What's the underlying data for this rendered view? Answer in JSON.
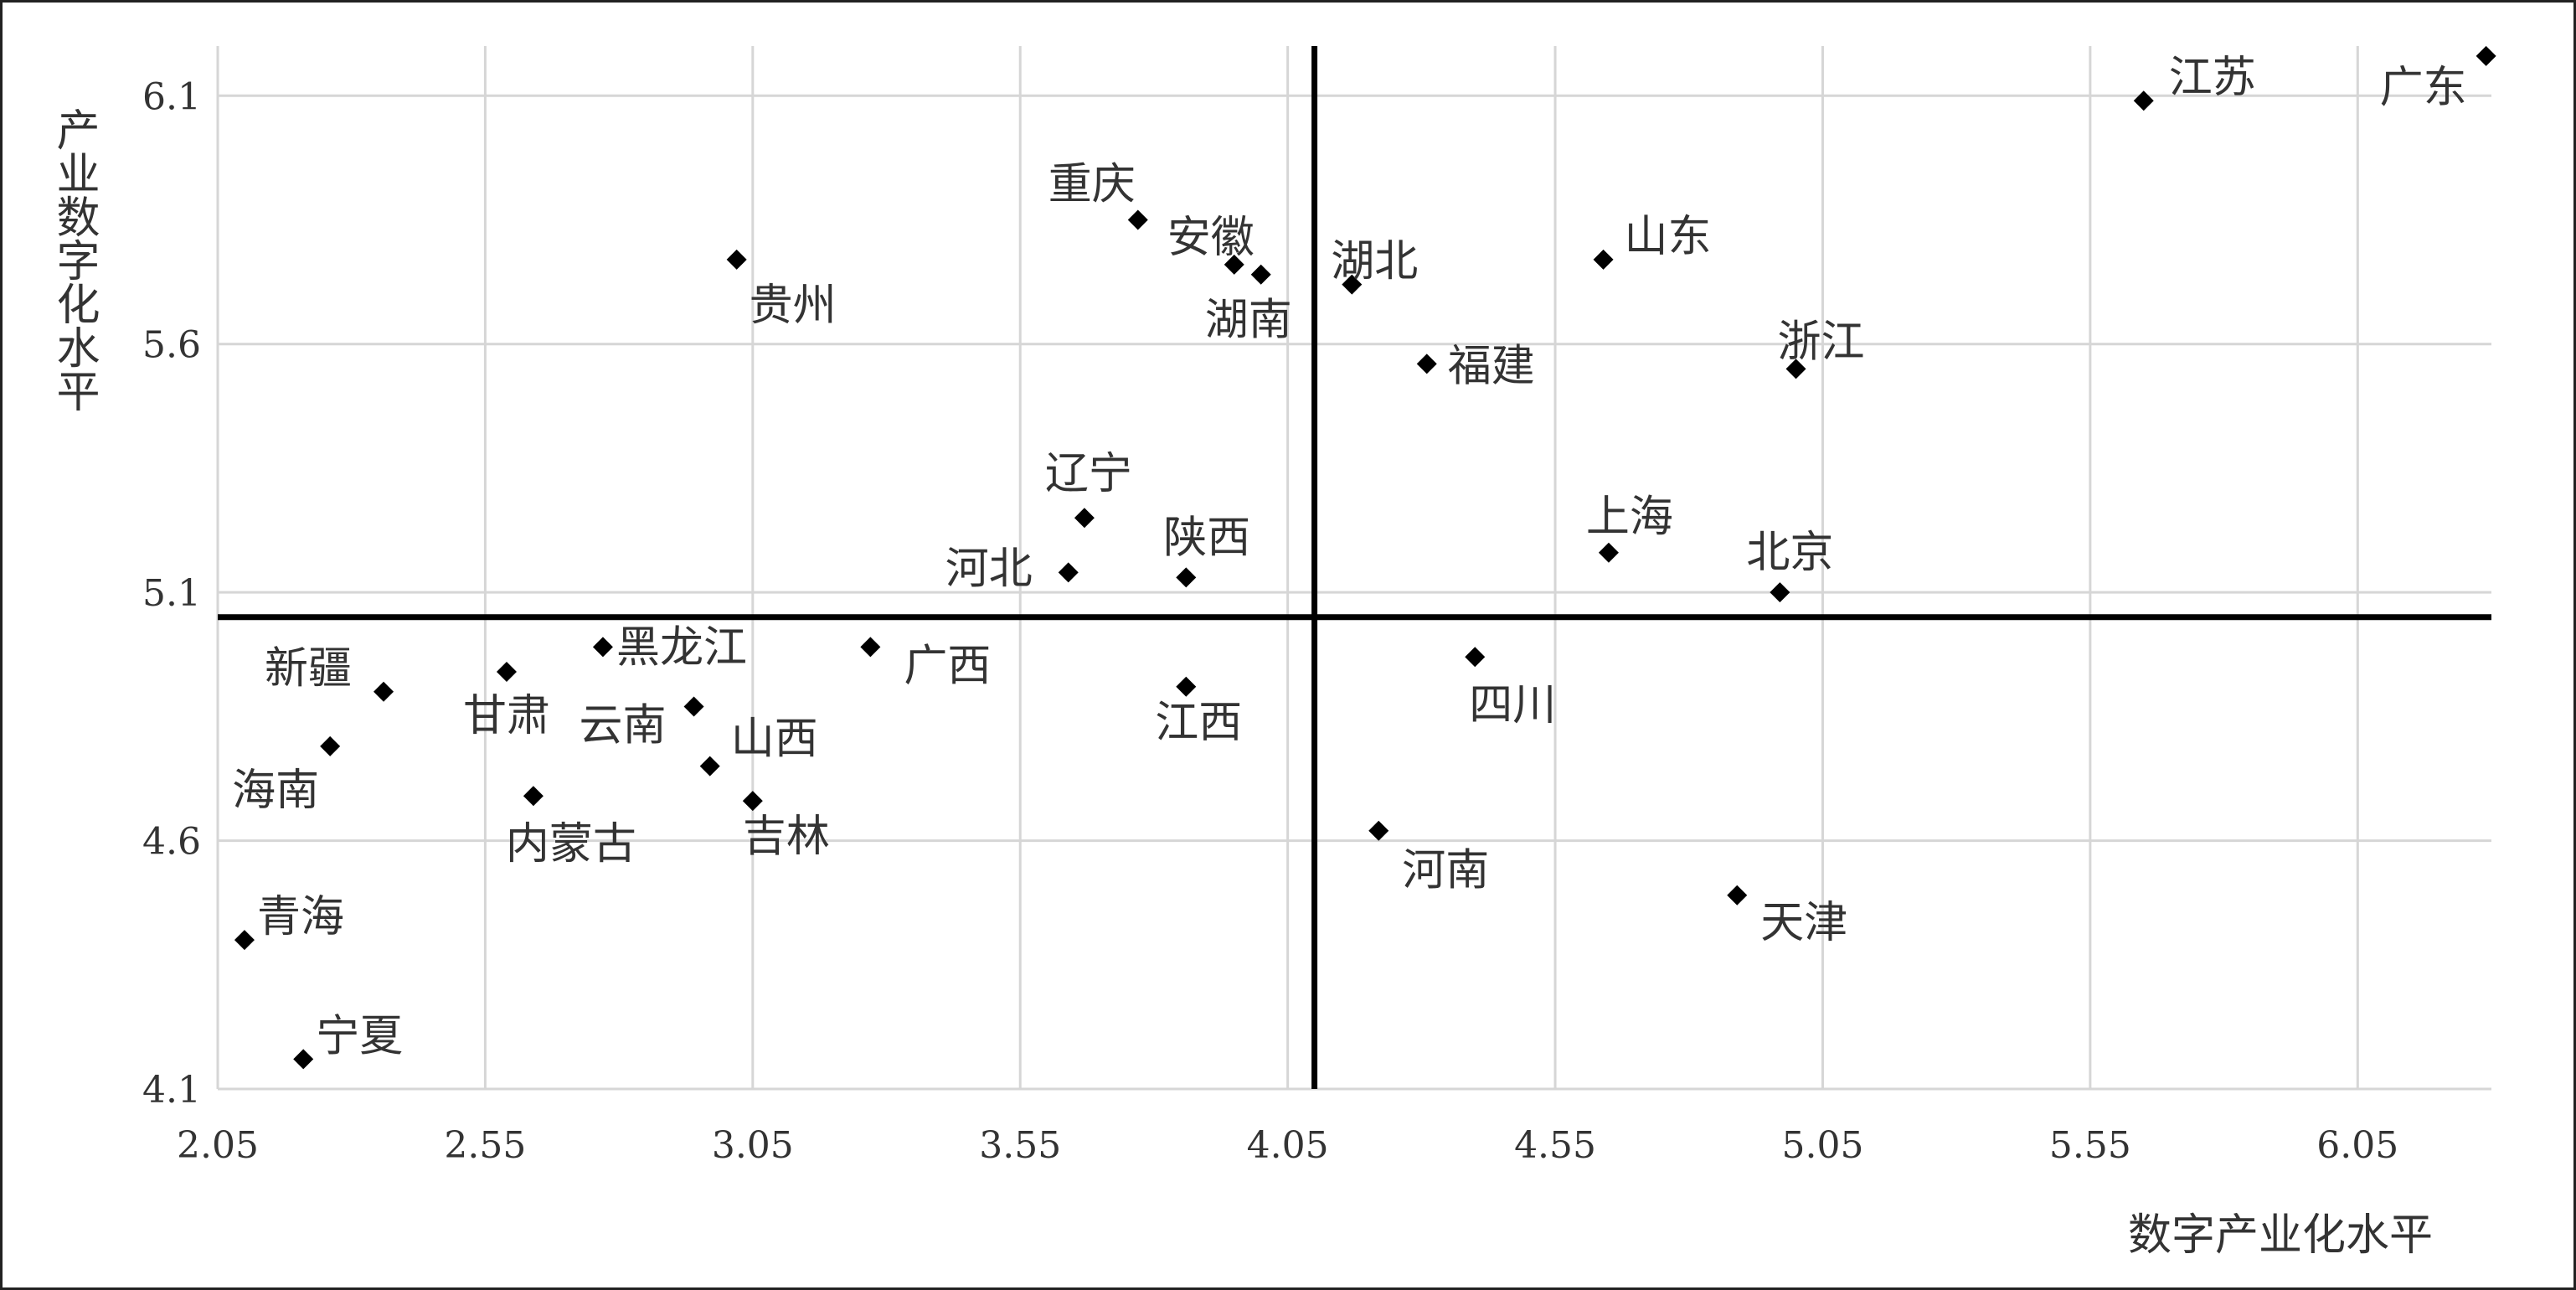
{
  "chart_data": {
    "type": "scatter",
    "title": "",
    "xlabel": "数字产业化水平",
    "ylabel": "产业数字化水平",
    "xlim": [
      2.05,
      6.3
    ],
    "ylim": [
      4.1,
      6.2
    ],
    "x_ticks": [
      "2.05",
      "2.55",
      "3.05",
      "3.55",
      "4.05",
      "4.55",
      "5.05",
      "5.55",
      "6.05"
    ],
    "y_ticks": [
      "4.1",
      "4.6",
      "5.1",
      "5.6",
      "6.1"
    ],
    "grid": true,
    "marker": "diamond",
    "marker_color": "#000000",
    "reference_lines": {
      "x": 4.1,
      "y": 5.05
    },
    "series": [
      {
        "points": [
          {
            "label": "广东",
            "x": 6.29,
            "y": 6.18
          },
          {
            "label": "江苏",
            "x": 5.65,
            "y": 6.09
          },
          {
            "label": "重庆",
            "x": 3.77,
            "y": 5.85
          },
          {
            "label": "安徽",
            "x": 3.95,
            "y": 5.76
          },
          {
            "label": "湖南",
            "x": 4.0,
            "y": 5.74
          },
          {
            "label": "湖北",
            "x": 4.17,
            "y": 5.72
          },
          {
            "label": "贵州",
            "x": 3.02,
            "y": 5.77
          },
          {
            "label": "山东",
            "x": 4.64,
            "y": 5.77
          },
          {
            "label": "福建",
            "x": 4.31,
            "y": 5.56
          },
          {
            "label": "浙江",
            "x": 5.0,
            "y": 5.55
          },
          {
            "label": "辽宁",
            "x": 3.67,
            "y": 5.25
          },
          {
            "label": "陕西",
            "x": 3.86,
            "y": 5.13
          },
          {
            "label": "河北",
            "x": 3.64,
            "y": 5.14
          },
          {
            "label": "上海",
            "x": 4.65,
            "y": 5.18
          },
          {
            "label": "北京",
            "x": 4.97,
            "y": 5.1
          },
          {
            "label": "广西",
            "x": 3.27,
            "y": 4.99
          },
          {
            "label": "黑龙江",
            "x": 2.77,
            "y": 4.99
          },
          {
            "label": "甘肃",
            "x": 2.59,
            "y": 4.94
          },
          {
            "label": "新疆",
            "x": 2.36,
            "y": 4.9
          },
          {
            "label": "云南",
            "x": 2.94,
            "y": 4.87
          },
          {
            "label": "山西",
            "x": 2.97,
            "y": 4.75
          },
          {
            "label": "海南",
            "x": 2.26,
            "y": 4.79
          },
          {
            "label": "内蒙古",
            "x": 2.64,
            "y": 4.69
          },
          {
            "label": "吉林",
            "x": 3.05,
            "y": 4.68
          },
          {
            "label": "江西",
            "x": 3.86,
            "y": 4.91
          },
          {
            "label": "四川",
            "x": 4.4,
            "y": 4.97
          },
          {
            "label": "河南",
            "x": 4.22,
            "y": 4.62
          },
          {
            "label": "天津",
            "x": 4.89,
            "y": 4.49
          },
          {
            "label": "青海",
            "x": 2.1,
            "y": 4.4
          },
          {
            "label": "宁夏",
            "x": 2.21,
            "y": 4.16
          }
        ]
      }
    ]
  }
}
